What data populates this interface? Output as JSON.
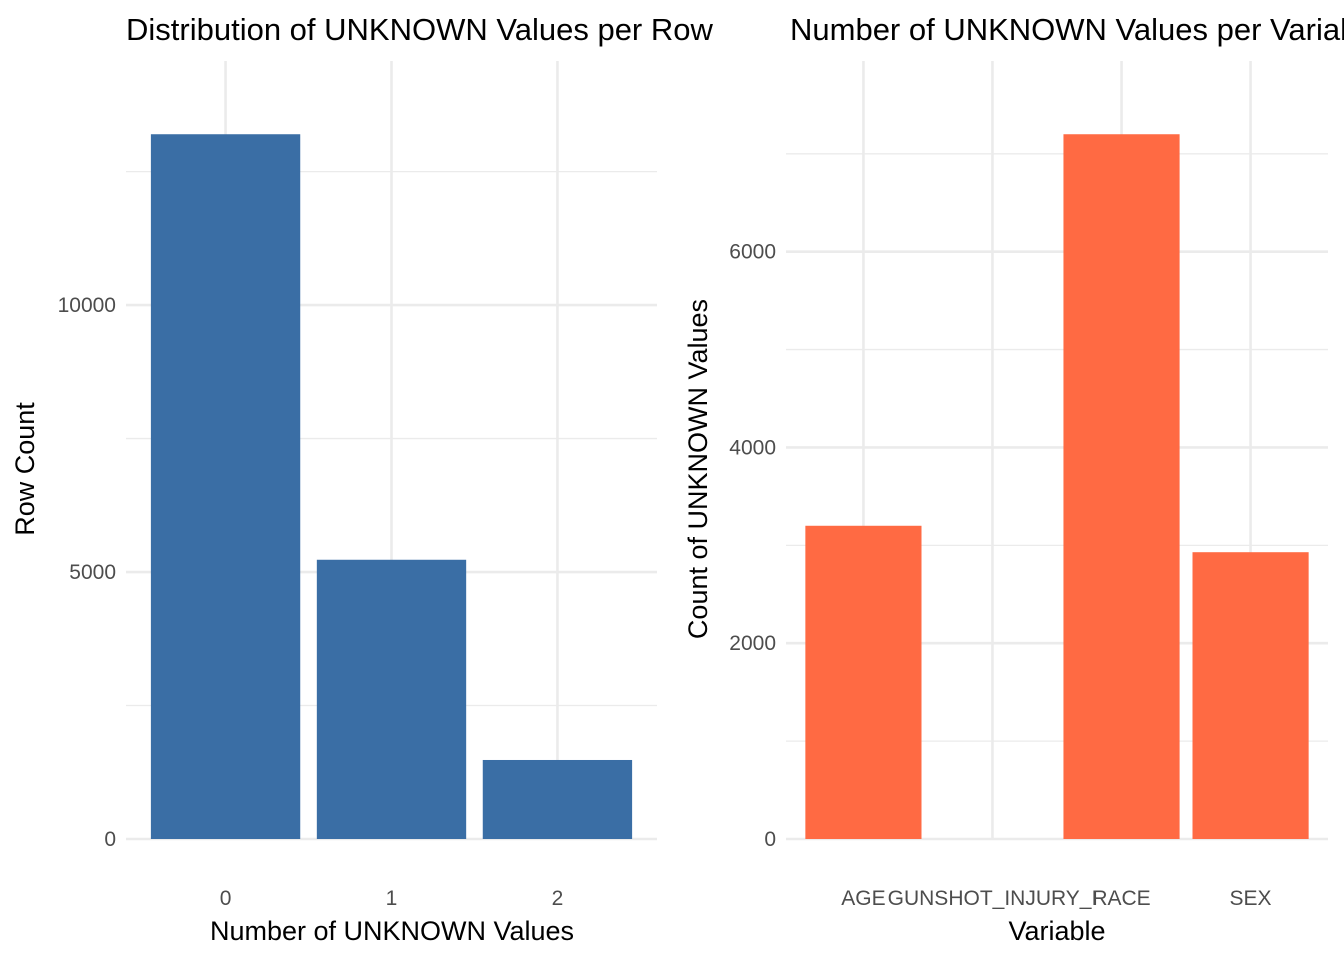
{
  "chart_data": [
    {
      "type": "bar",
      "title": "Distribution of UNKNOWN Values per Row",
      "xlabel": "Number of UNKNOWN Values",
      "ylabel": "Row Count",
      "categories": [
        "0",
        "1",
        "2"
      ],
      "values": [
        13200,
        5230,
        1480
      ],
      "ylim": [
        0,
        13860
      ],
      "yticks": [
        0,
        5000,
        10000
      ],
      "yticks_minor": [
        2500,
        7500,
        12500
      ],
      "color": "#3a6ea5",
      "grid": true
    },
    {
      "type": "bar",
      "title": "Number of UNKNOWN Values per Variable",
      "xlabel": "Variable",
      "ylabel": "Count of UNKNOWN Values",
      "categories": [
        "AGE",
        "GUNSHOT_INJURY_I",
        "RACE",
        "SEX"
      ],
      "values": [
        3200,
        0,
        7200,
        2930
      ],
      "ylim": [
        0,
        7560
      ],
      "yticks": [
        0,
        2000,
        4000,
        6000
      ],
      "yticks_minor": [
        1000,
        3000,
        5000,
        7000
      ],
      "color": "#ff6a43",
      "grid": true
    }
  ]
}
